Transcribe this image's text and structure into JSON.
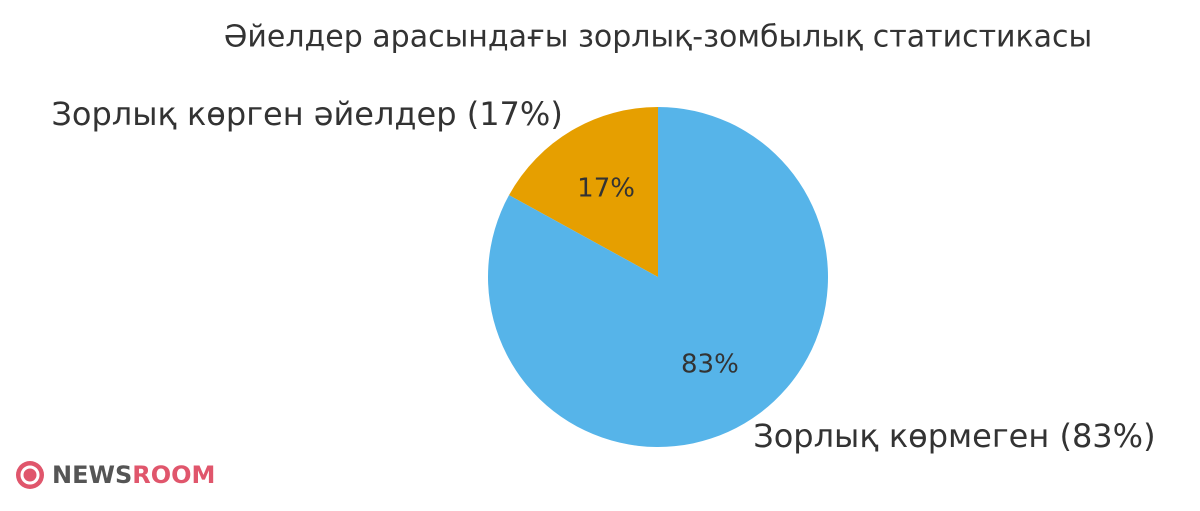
{
  "chart_data": {
    "type": "pie",
    "title": "Әйелдер арасындағы зорлық-зомбылық статистикасы",
    "categories": [
      "Зорлық көрген әйелдер (17%)",
      "Зорлық көрмеген (83%)"
    ],
    "values": [
      17,
      83
    ],
    "value_labels": [
      "17%",
      "83%"
    ],
    "colors": [
      "#E69F00",
      "#56B4E9"
    ]
  },
  "logo": {
    "part1": "NEWS",
    "part2": "ROOM"
  }
}
